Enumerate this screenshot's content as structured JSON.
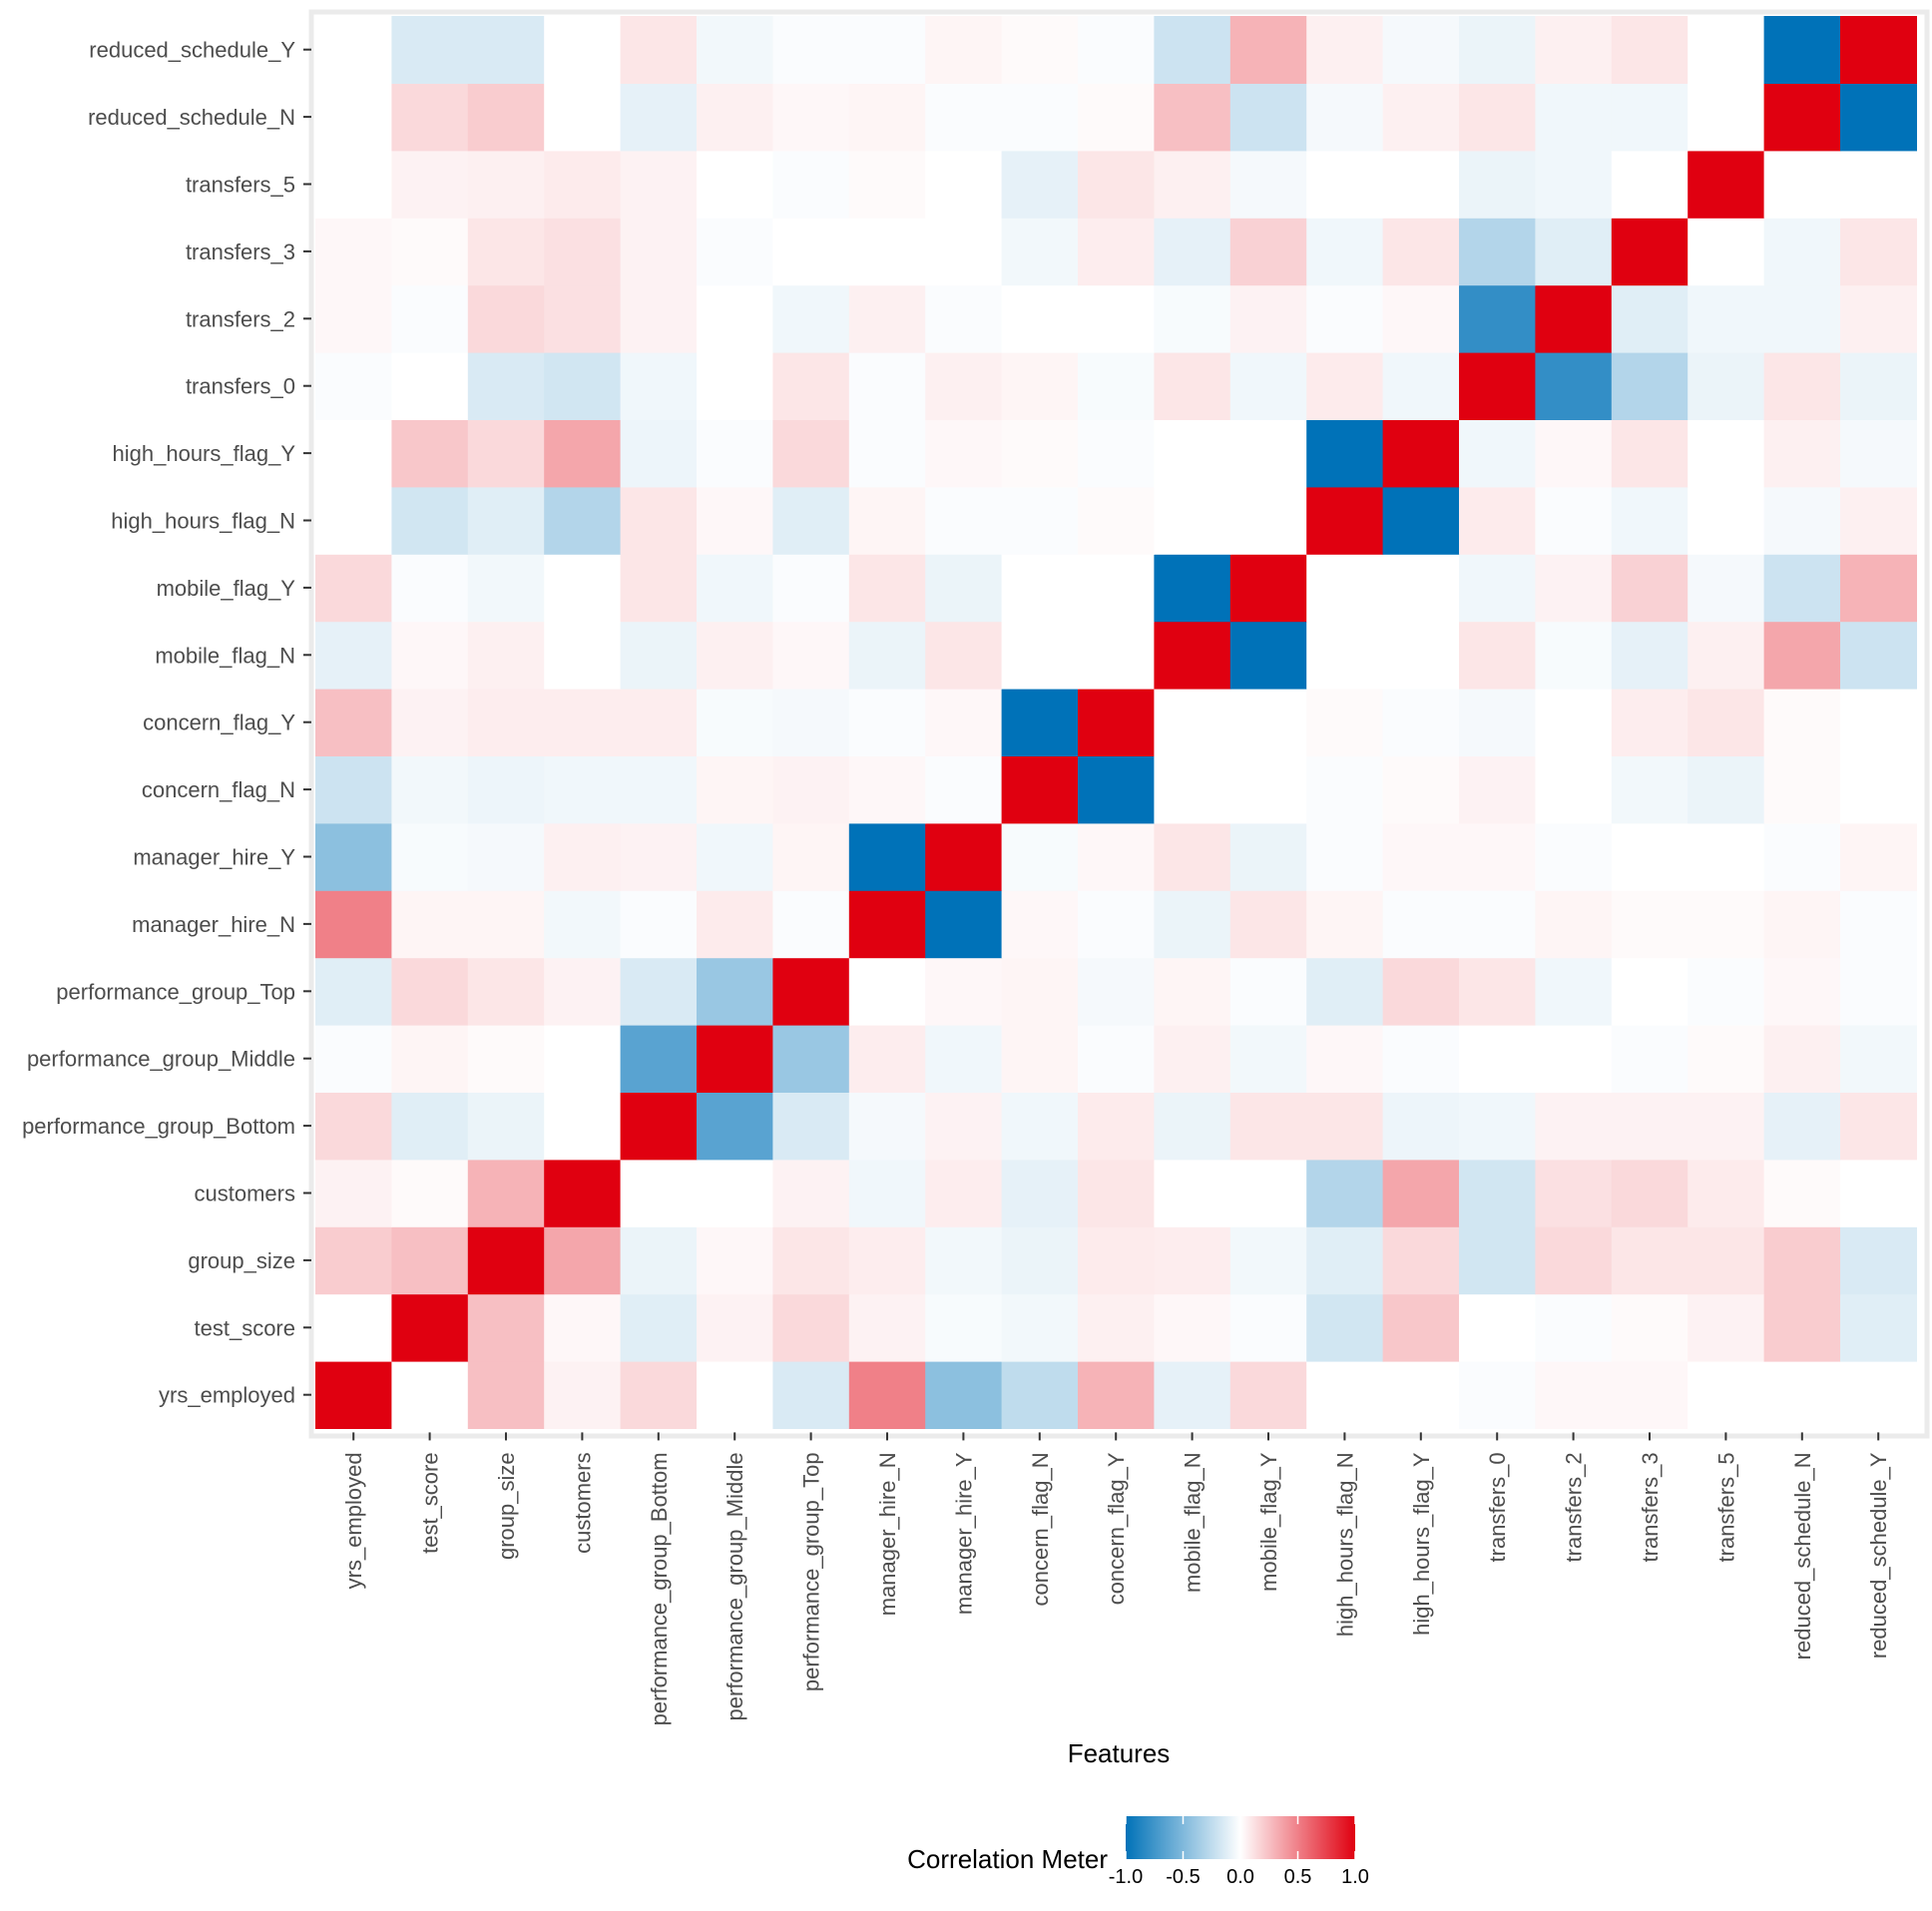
{
  "chart_data": {
    "type": "heatmap",
    "title": "",
    "xlabel": "Features",
    "ylabel": "",
    "features": [
      "yrs_employed",
      "test_score",
      "group_size",
      "customers",
      "performance_group_Bottom",
      "performance_group_Middle",
      "performance_group_Top",
      "manager_hire_N",
      "manager_hire_Y",
      "concern_flag_N",
      "concern_flag_Y",
      "mobile_flag_N",
      "mobile_flag_Y",
      "high_hours_flag_N",
      "high_hours_flag_Y",
      "transfers_0",
      "transfers_2",
      "transfers_3",
      "transfers_5",
      "reduced_schedule_N",
      "reduced_schedule_Y"
    ],
    "values": [
      [
        1.0,
        0.0,
        0.25,
        0.05,
        0.15,
        0.0,
        -0.15,
        0.5,
        -0.45,
        -0.25,
        0.3,
        -0.1,
        0.15,
        0.0,
        0.0,
        -0.02,
        0.03,
        0.03,
        0.0,
        0.0,
        0.0
      ],
      [
        0.0,
        1.0,
        0.25,
        0.03,
        -0.12,
        0.05,
        0.15,
        0.05,
        -0.03,
        -0.05,
        0.06,
        0.03,
        -0.02,
        -0.18,
        0.22,
        0.0,
        -0.02,
        0.02,
        0.05,
        0.2,
        -0.12
      ],
      [
        0.2,
        0.25,
        1.0,
        0.35,
        -0.08,
        0.03,
        0.1,
        0.07,
        -0.05,
        -0.08,
        0.08,
        0.07,
        -0.05,
        -0.12,
        0.15,
        -0.18,
        0.15,
        0.1,
        0.1,
        0.2,
        -0.15
      ],
      [
        0.05,
        0.02,
        0.3,
        1.0,
        0.0,
        0.0,
        0.05,
        -0.06,
        0.07,
        -0.1,
        0.1,
        0.0,
        0.0,
        -0.3,
        0.35,
        -0.18,
        0.12,
        0.15,
        0.08,
        0.02,
        0.0
      ],
      [
        0.15,
        -0.12,
        -0.08,
        0.0,
        1.0,
        -0.65,
        -0.15,
        -0.04,
        0.05,
        -0.06,
        0.08,
        -0.08,
        0.1,
        0.1,
        -0.07,
        -0.06,
        0.05,
        0.05,
        0.05,
        -0.1,
        0.1
      ],
      [
        -0.02,
        0.04,
        0.02,
        0.0,
        -0.65,
        1.0,
        -0.4,
        0.07,
        -0.06,
        0.04,
        -0.02,
        0.06,
        -0.05,
        0.03,
        -0.02,
        0.0,
        0.0,
        -0.02,
        0.02,
        0.06,
        -0.05
      ],
      [
        -0.12,
        0.15,
        0.1,
        0.05,
        -0.15,
        -0.4,
        1.0,
        0.0,
        0.03,
        0.04,
        -0.04,
        0.04,
        -0.02,
        -0.12,
        0.15,
        0.1,
        -0.06,
        0.0,
        -0.02,
        0.03,
        -0.02
      ],
      [
        0.5,
        0.04,
        0.04,
        -0.05,
        -0.02,
        0.08,
        -0.02,
        1.0,
        -1.0,
        0.03,
        -0.02,
        -0.08,
        0.1,
        0.04,
        -0.02,
        -0.02,
        0.04,
        0.02,
        0.02,
        0.04,
        -0.02
      ],
      [
        -0.45,
        -0.03,
        -0.04,
        0.06,
        0.05,
        -0.06,
        0.04,
        -1.0,
        1.0,
        -0.03,
        0.03,
        0.1,
        -0.08,
        -0.02,
        0.03,
        0.03,
        -0.02,
        0.0,
        0.0,
        -0.02,
        0.04
      ],
      [
        -0.2,
        -0.05,
        -0.07,
        -0.06,
        -0.06,
        0.04,
        0.05,
        0.03,
        -0.02,
        1.0,
        -1.0,
        0.0,
        0.0,
        -0.02,
        0.02,
        0.05,
        0.0,
        -0.05,
        -0.08,
        0.02,
        0.0
      ],
      [
        0.25,
        0.05,
        0.07,
        0.07,
        0.07,
        -0.03,
        -0.04,
        -0.02,
        0.03,
        -1.0,
        1.0,
        0.0,
        0.0,
        0.02,
        -0.02,
        -0.04,
        0.0,
        0.07,
        0.1,
        0.02,
        0.0
      ],
      [
        -0.1,
        0.03,
        0.06,
        0.0,
        -0.08,
        0.06,
        0.03,
        -0.08,
        0.1,
        0.0,
        0.0,
        1.0,
        -1.0,
        0.0,
        0.0,
        0.1,
        -0.03,
        -0.1,
        0.06,
        0.35,
        -0.2
      ],
      [
        0.15,
        -0.02,
        -0.05,
        0.0,
        0.1,
        -0.06,
        -0.02,
        0.1,
        -0.08,
        0.0,
        0.0,
        -1.0,
        1.0,
        0.0,
        0.0,
        -0.06,
        0.05,
        0.18,
        -0.04,
        -0.2,
        0.3
      ],
      [
        0.0,
        -0.18,
        -0.12,
        -0.3,
        0.1,
        0.03,
        -0.12,
        0.04,
        -0.02,
        -0.02,
        0.02,
        0.0,
        0.0,
        1.0,
        -1.0,
        0.08,
        -0.02,
        -0.06,
        0.0,
        -0.04,
        0.06
      ],
      [
        0.0,
        0.22,
        0.15,
        0.35,
        -0.07,
        -0.02,
        0.15,
        -0.02,
        0.03,
        0.02,
        -0.02,
        0.0,
        0.0,
        -1.0,
        1.0,
        -0.06,
        0.03,
        0.1,
        0.0,
        0.06,
        -0.04
      ],
      [
        -0.02,
        0.0,
        -0.15,
        -0.18,
        -0.06,
        0.0,
        0.1,
        -0.02,
        0.06,
        0.04,
        -0.03,
        0.1,
        -0.06,
        0.08,
        -0.06,
        1.0,
        -0.8,
        -0.3,
        -0.08,
        0.1,
        -0.08
      ],
      [
        0.03,
        -0.02,
        0.15,
        0.12,
        0.05,
        0.0,
        -0.06,
        0.06,
        -0.02,
        0.0,
        0.0,
        -0.03,
        0.05,
        -0.02,
        0.03,
        -0.8,
        1.0,
        -0.12,
        -0.06,
        -0.06,
        0.06
      ],
      [
        0.03,
        0.02,
        0.1,
        0.12,
        0.05,
        -0.02,
        0.0,
        0.0,
        0.0,
        -0.05,
        0.07,
        -0.1,
        0.18,
        -0.06,
        0.1,
        -0.3,
        -0.12,
        1.0,
        0.0,
        -0.06,
        0.1
      ],
      [
        0.0,
        0.05,
        0.06,
        0.08,
        0.05,
        0.0,
        -0.02,
        0.02,
        0.0,
        -0.1,
        0.1,
        0.06,
        -0.04,
        0.0,
        0.0,
        -0.08,
        -0.06,
        0.0,
        1.0,
        0.0,
        0.0
      ],
      [
        0.0,
        0.15,
        0.2,
        0.0,
        -0.1,
        0.06,
        0.03,
        0.04,
        -0.02,
        -0.02,
        0.02,
        0.25,
        -0.2,
        -0.04,
        0.06,
        0.1,
        -0.06,
        -0.06,
        0.0,
        1.0,
        -1.0
      ],
      [
        0.0,
        -0.15,
        -0.15,
        0.0,
        0.1,
        -0.05,
        -0.02,
        -0.02,
        0.04,
        0.02,
        -0.02,
        -0.2,
        0.3,
        0.06,
        -0.04,
        -0.08,
        0.06,
        0.1,
        0.0,
        -1.0,
        1.0
      ]
    ],
    "scale": {
      "min": -1.0,
      "max": 1.0,
      "low_color": "#0072b8",
      "mid_color": "#ffffff",
      "high_color": "#e00010",
      "title": "Correlation Meter",
      "ticks": [
        -1.0,
        -0.5,
        0.0,
        0.5,
        1.0
      ],
      "tick_labels": [
        "-1.0",
        "-0.5",
        "0.0",
        "0.5",
        "1.0"
      ]
    },
    "legend_position": "bottom",
    "grid": false
  }
}
